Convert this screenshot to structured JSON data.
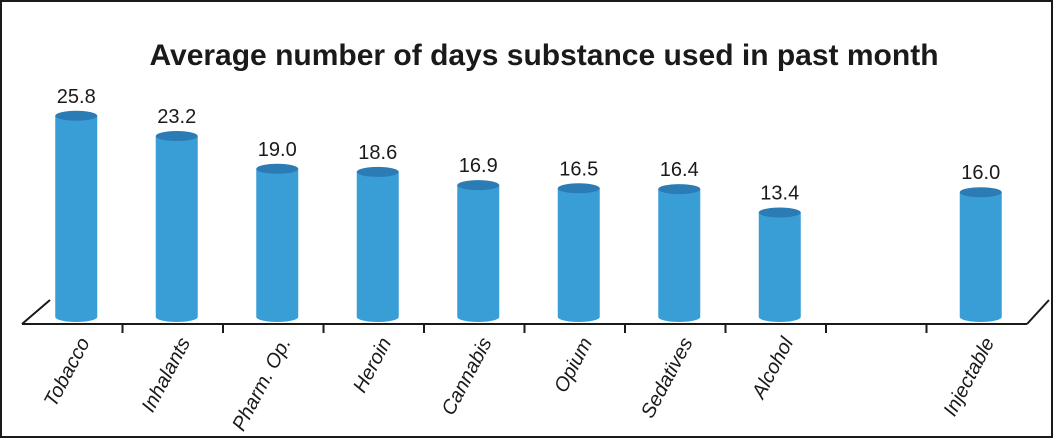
{
  "chart_data": {
    "type": "bar",
    "title": "Average number of days substance used in past month",
    "categories": [
      "Tobacco",
      "Inhalants",
      "Pharm. Op.",
      "Heroin",
      "Cannabis",
      "Opium",
      "Sedatives",
      "Alcohol",
      "",
      "Injectable"
    ],
    "values": [
      25.8,
      23.2,
      19.0,
      18.6,
      16.9,
      16.5,
      16.4,
      13.4,
      null,
      16.0
    ],
    "value_labels": [
      "25.8",
      "23.2",
      "19.0",
      "18.6",
      "16.9",
      "16.5",
      "16.4",
      "13.4",
      "",
      "16.0"
    ],
    "xlabel": "",
    "ylabel": "",
    "ylim": [
      0,
      26
    ],
    "grid": false,
    "legend": "none",
    "bar_style": "cylinder",
    "colors": {
      "bar": "#3a9ed6",
      "bar_top": "#2b7bb4",
      "axis": "#1a1a1a"
    }
  }
}
